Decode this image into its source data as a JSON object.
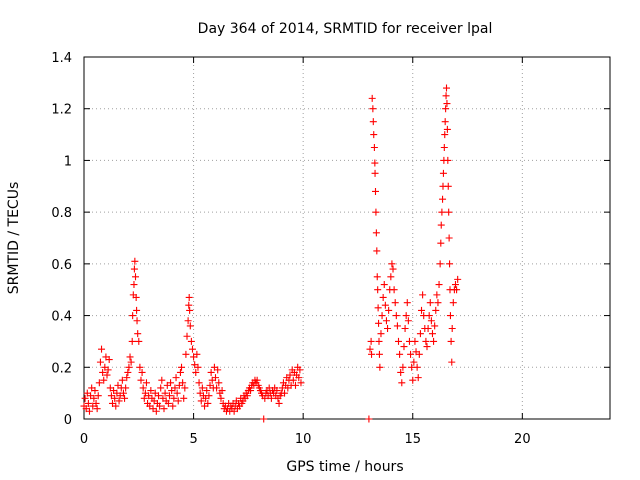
{
  "chart_data": {
    "type": "scatter",
    "title": "Day 364 of 2014, SRMTID for receiver lpal",
    "xlabel": "GPS time / hours",
    "ylabel": "SRMTID / TECUs",
    "xlim": [
      0,
      24
    ],
    "ylim": [
      0,
      1.4
    ],
    "xticks": [
      0,
      5,
      10,
      15,
      20
    ],
    "yticks": [
      0,
      0.2,
      0.4,
      0.6,
      0.8,
      1,
      1.2,
      1.4
    ],
    "xtick_labels": [
      "0",
      "5",
      "10",
      "15",
      "20"
    ],
    "ytick_labels": [
      "0",
      "0.2",
      "0.4",
      "0.6",
      "0.8",
      "1",
      "1.2",
      "1.4"
    ],
    "grid": true,
    "marker": "+",
    "color": "#ff0000",
    "series": [
      {
        "name": "SRMTID",
        "points": [
          [
            0.0,
            0.05
          ],
          [
            0.05,
            0.08
          ],
          [
            0.1,
            0.04
          ],
          [
            0.15,
            0.1
          ],
          [
            0.2,
            0.06
          ],
          [
            0.25,
            0.03
          ],
          [
            0.3,
            0.09
          ],
          [
            0.35,
            0.12
          ],
          [
            0.4,
            0.05
          ],
          [
            0.45,
            0.08
          ],
          [
            0.5,
            0.11
          ],
          [
            0.55,
            0.06
          ],
          [
            0.6,
            0.04
          ],
          [
            0.65,
            0.09
          ],
          [
            0.7,
            0.14
          ],
          [
            0.75,
            0.22
          ],
          [
            0.8,
            0.27
          ],
          [
            0.85,
            0.18
          ],
          [
            0.9,
            0.15
          ],
          [
            0.95,
            0.2
          ],
          [
            1.0,
            0.24
          ],
          [
            1.05,
            0.17
          ],
          [
            1.1,
            0.19
          ],
          [
            1.15,
            0.23
          ],
          [
            1.2,
            0.12
          ],
          [
            1.25,
            0.09
          ],
          [
            1.3,
            0.06
          ],
          [
            1.35,
            0.11
          ],
          [
            1.4,
            0.08
          ],
          [
            1.45,
            0.05
          ],
          [
            1.5,
            0.1
          ],
          [
            1.55,
            0.13
          ],
          [
            1.6,
            0.07
          ],
          [
            1.65,
            0.09
          ],
          [
            1.7,
            0.12
          ],
          [
            1.75,
            0.15
          ],
          [
            1.8,
            0.1
          ],
          [
            1.85,
            0.08
          ],
          [
            1.9,
            0.12
          ],
          [
            1.95,
            0.16
          ],
          [
            2.0,
            0.18
          ],
          [
            2.05,
            0.2
          ],
          [
            2.1,
            0.24
          ],
          [
            2.15,
            0.22
          ],
          [
            2.2,
            0.3
          ],
          [
            2.22,
            0.4
          ],
          [
            2.25,
            0.48
          ],
          [
            2.28,
            0.52
          ],
          [
            2.3,
            0.58
          ],
          [
            2.32,
            0.61
          ],
          [
            2.35,
            0.55
          ],
          [
            2.38,
            0.47
          ],
          [
            2.4,
            0.42
          ],
          [
            2.42,
            0.38
          ],
          [
            2.45,
            0.33
          ],
          [
            2.5,
            0.3
          ],
          [
            2.55,
            0.2
          ],
          [
            2.6,
            0.15
          ],
          [
            2.65,
            0.18
          ],
          [
            2.7,
            0.12
          ],
          [
            2.75,
            0.08
          ],
          [
            2.8,
            0.1
          ],
          [
            2.85,
            0.14
          ],
          [
            2.9,
            0.06
          ],
          [
            2.95,
            0.09
          ],
          [
            3.0,
            0.05
          ],
          [
            3.05,
            0.11
          ],
          [
            3.1,
            0.08
          ],
          [
            3.15,
            0.04
          ],
          [
            3.2,
            0.07
          ],
          [
            3.25,
            0.1
          ],
          [
            3.3,
            0.03
          ],
          [
            3.35,
            0.06
          ],
          [
            3.4,
            0.09
          ],
          [
            3.45,
            0.05
          ],
          [
            3.5,
            0.12
          ],
          [
            3.55,
            0.15
          ],
          [
            3.6,
            0.08
          ],
          [
            3.65,
            0.04
          ],
          [
            3.7,
            0.1
          ],
          [
            3.75,
            0.07
          ],
          [
            3.8,
            0.13
          ],
          [
            3.85,
            0.06
          ],
          [
            3.9,
            0.09
          ],
          [
            3.95,
            0.14
          ],
          [
            4.0,
            0.11
          ],
          [
            4.05,
            0.05
          ],
          [
            4.1,
            0.08
          ],
          [
            4.15,
            0.12
          ],
          [
            4.2,
            0.16
          ],
          [
            4.25,
            0.1
          ],
          [
            4.3,
            0.07
          ],
          [
            4.35,
            0.13
          ],
          [
            4.4,
            0.18
          ],
          [
            4.45,
            0.2
          ],
          [
            4.5,
            0.14
          ],
          [
            4.55,
            0.08
          ],
          [
            4.6,
            0.12
          ],
          [
            4.65,
            0.25
          ],
          [
            4.7,
            0.32
          ],
          [
            4.75,
            0.38
          ],
          [
            4.78,
            0.44
          ],
          [
            4.8,
            0.47
          ],
          [
            4.82,
            0.42
          ],
          [
            4.85,
            0.36
          ],
          [
            4.9,
            0.3
          ],
          [
            4.95,
            0.27
          ],
          [
            5.0,
            0.24
          ],
          [
            5.05,
            0.21
          ],
          [
            5.1,
            0.18
          ],
          [
            5.15,
            0.25
          ],
          [
            5.2,
            0.2
          ],
          [
            5.25,
            0.14
          ],
          [
            5.3,
            0.1
          ],
          [
            5.35,
            0.07
          ],
          [
            5.4,
            0.12
          ],
          [
            5.45,
            0.09
          ],
          [
            5.5,
            0.05
          ],
          [
            5.55,
            0.08
          ],
          [
            5.6,
            0.11
          ],
          [
            5.65,
            0.06
          ],
          [
            5.7,
            0.09
          ],
          [
            5.75,
            0.13
          ],
          [
            5.8,
            0.18
          ],
          [
            5.85,
            0.15
          ],
          [
            5.9,
            0.12
          ],
          [
            5.95,
            0.2
          ],
          [
            6.0,
            0.16
          ],
          [
            6.05,
            0.12
          ],
          [
            6.1,
            0.19
          ],
          [
            6.15,
            0.14
          ],
          [
            6.2,
            0.1
          ],
          [
            6.25,
            0.08
          ],
          [
            6.3,
            0.11
          ],
          [
            6.35,
            0.06
          ],
          [
            6.4,
            0.04
          ],
          [
            6.45,
            0.05
          ],
          [
            6.5,
            0.03
          ],
          [
            6.55,
            0.04
          ],
          [
            6.6,
            0.06
          ],
          [
            6.65,
            0.03
          ],
          [
            6.7,
            0.05
          ],
          [
            6.75,
            0.04
          ],
          [
            6.8,
            0.06
          ],
          [
            6.85,
            0.03
          ],
          [
            6.9,
            0.05
          ],
          [
            6.95,
            0.07
          ],
          [
            7.0,
            0.04
          ],
          [
            7.05,
            0.06
          ],
          [
            7.1,
            0.05
          ],
          [
            7.15,
            0.08
          ],
          [
            7.2,
            0.06
          ],
          [
            7.25,
            0.07
          ],
          [
            7.3,
            0.09
          ],
          [
            7.35,
            0.08
          ],
          [
            7.4,
            0.1
          ],
          [
            7.45,
            0.09
          ],
          [
            7.5,
            0.11
          ],
          [
            7.55,
            0.12
          ],
          [
            7.6,
            0.11
          ],
          [
            7.65,
            0.13
          ],
          [
            7.7,
            0.14
          ],
          [
            7.75,
            0.13
          ],
          [
            7.8,
            0.15
          ],
          [
            7.85,
            0.14
          ],
          [
            7.9,
            0.15
          ],
          [
            7.95,
            0.13
          ],
          [
            8.0,
            0.12
          ],
          [
            8.05,
            0.11
          ],
          [
            8.1,
            0.1
          ],
          [
            8.15,
            0.09
          ],
          [
            8.2,
            0.0
          ],
          [
            8.25,
            0.08
          ],
          [
            8.3,
            0.1
          ],
          [
            8.35,
            0.11
          ],
          [
            8.4,
            0.09
          ],
          [
            8.45,
            0.12
          ],
          [
            8.5,
            0.1
          ],
          [
            8.55,
            0.08
          ],
          [
            8.6,
            0.11
          ],
          [
            8.65,
            0.1
          ],
          [
            8.7,
            0.12
          ],
          [
            8.75,
            0.09
          ],
          [
            8.8,
            0.11
          ],
          [
            8.85,
            0.08
          ],
          [
            8.9,
            0.06
          ],
          [
            8.95,
            0.09
          ],
          [
            9.0,
            0.1
          ],
          [
            9.05,
            0.12
          ],
          [
            9.1,
            0.14
          ],
          [
            9.15,
            0.1
          ],
          [
            9.2,
            0.13
          ],
          [
            9.25,
            0.16
          ],
          [
            9.3,
            0.12
          ],
          [
            9.35,
            0.15
          ],
          [
            9.4,
            0.17
          ],
          [
            9.45,
            0.13
          ],
          [
            9.5,
            0.19
          ],
          [
            9.55,
            0.15
          ],
          [
            9.6,
            0.18
          ],
          [
            9.65,
            0.13
          ],
          [
            9.7,
            0.17
          ],
          [
            9.75,
            0.2
          ],
          [
            9.8,
            0.16
          ],
          [
            9.85,
            0.19
          ],
          [
            9.9,
            0.14
          ],
          [
            13.0,
            0.0
          ],
          [
            13.05,
            0.27
          ],
          [
            13.1,
            0.3
          ],
          [
            13.12,
            0.25
          ],
          [
            13.15,
            1.24
          ],
          [
            13.18,
            1.2
          ],
          [
            13.2,
            1.15
          ],
          [
            13.22,
            1.1
          ],
          [
            13.25,
            1.05
          ],
          [
            13.27,
            0.99
          ],
          [
            13.28,
            0.95
          ],
          [
            13.3,
            0.88
          ],
          [
            13.32,
            0.8
          ],
          [
            13.34,
            0.72
          ],
          [
            13.36,
            0.65
          ],
          [
            13.38,
            0.55
          ],
          [
            13.4,
            0.5
          ],
          [
            13.42,
            0.43
          ],
          [
            13.44,
            0.37
          ],
          [
            13.46,
            0.3
          ],
          [
            13.48,
            0.25
          ],
          [
            13.5,
            0.2
          ],
          [
            13.55,
            0.33
          ],
          [
            13.6,
            0.4
          ],
          [
            13.65,
            0.47
          ],
          [
            13.7,
            0.52
          ],
          [
            13.75,
            0.44
          ],
          [
            13.8,
            0.38
          ],
          [
            13.85,
            0.35
          ],
          [
            13.9,
            0.42
          ],
          [
            13.95,
            0.5
          ],
          [
            14.0,
            0.55
          ],
          [
            14.05,
            0.6
          ],
          [
            14.1,
            0.58
          ],
          [
            14.15,
            0.5
          ],
          [
            14.2,
            0.45
          ],
          [
            14.25,
            0.4
          ],
          [
            14.3,
            0.36
          ],
          [
            14.35,
            0.3
          ],
          [
            14.4,
            0.25
          ],
          [
            14.45,
            0.18
          ],
          [
            14.5,
            0.14
          ],
          [
            14.55,
            0.2
          ],
          [
            14.6,
            0.28
          ],
          [
            14.65,
            0.35
          ],
          [
            14.7,
            0.4
          ],
          [
            14.75,
            0.45
          ],
          [
            14.8,
            0.38
          ],
          [
            14.85,
            0.3
          ],
          [
            14.9,
            0.25
          ],
          [
            14.95,
            0.2
          ],
          [
            15.0,
            0.15
          ],
          [
            15.05,
            0.22
          ],
          [
            15.1,
            0.3
          ],
          [
            15.15,
            0.26
          ],
          [
            15.2,
            0.2
          ],
          [
            15.25,
            0.16
          ],
          [
            15.3,
            0.25
          ],
          [
            15.35,
            0.33
          ],
          [
            15.4,
            0.42
          ],
          [
            15.45,
            0.48
          ],
          [
            15.5,
            0.4
          ],
          [
            15.55,
            0.35
          ],
          [
            15.6,
            0.3
          ],
          [
            15.65,
            0.28
          ],
          [
            15.7,
            0.35
          ],
          [
            15.75,
            0.4
          ],
          [
            15.8,
            0.45
          ],
          [
            15.85,
            0.38
          ],
          [
            15.9,
            0.33
          ],
          [
            15.95,
            0.3
          ],
          [
            16.0,
            0.36
          ],
          [
            16.05,
            0.42
          ],
          [
            16.1,
            0.48
          ],
          [
            16.15,
            0.45
          ],
          [
            16.2,
            0.52
          ],
          [
            16.25,
            0.6
          ],
          [
            16.28,
            0.68
          ],
          [
            16.3,
            0.75
          ],
          [
            16.33,
            0.8
          ],
          [
            16.36,
            0.85
          ],
          [
            16.38,
            0.9
          ],
          [
            16.4,
            0.95
          ],
          [
            16.42,
            1.0
          ],
          [
            16.44,
            1.05
          ],
          [
            16.46,
            1.1
          ],
          [
            16.48,
            1.15
          ],
          [
            16.5,
            1.2
          ],
          [
            16.52,
            1.25
          ],
          [
            16.54,
            1.28
          ],
          [
            16.56,
            1.22
          ],
          [
            16.58,
            1.12
          ],
          [
            16.6,
            1.0
          ],
          [
            16.62,
            0.9
          ],
          [
            16.64,
            0.8
          ],
          [
            16.66,
            0.7
          ],
          [
            16.68,
            0.6
          ],
          [
            16.7,
            0.5
          ],
          [
            16.72,
            0.4
          ],
          [
            16.75,
            0.3
          ],
          [
            16.78,
            0.22
          ],
          [
            16.8,
            0.35
          ],
          [
            16.85,
            0.45
          ],
          [
            16.9,
            0.5
          ],
          [
            16.95,
            0.52
          ],
          [
            17.0,
            0.5
          ],
          [
            17.05,
            0.54
          ]
        ]
      }
    ]
  }
}
